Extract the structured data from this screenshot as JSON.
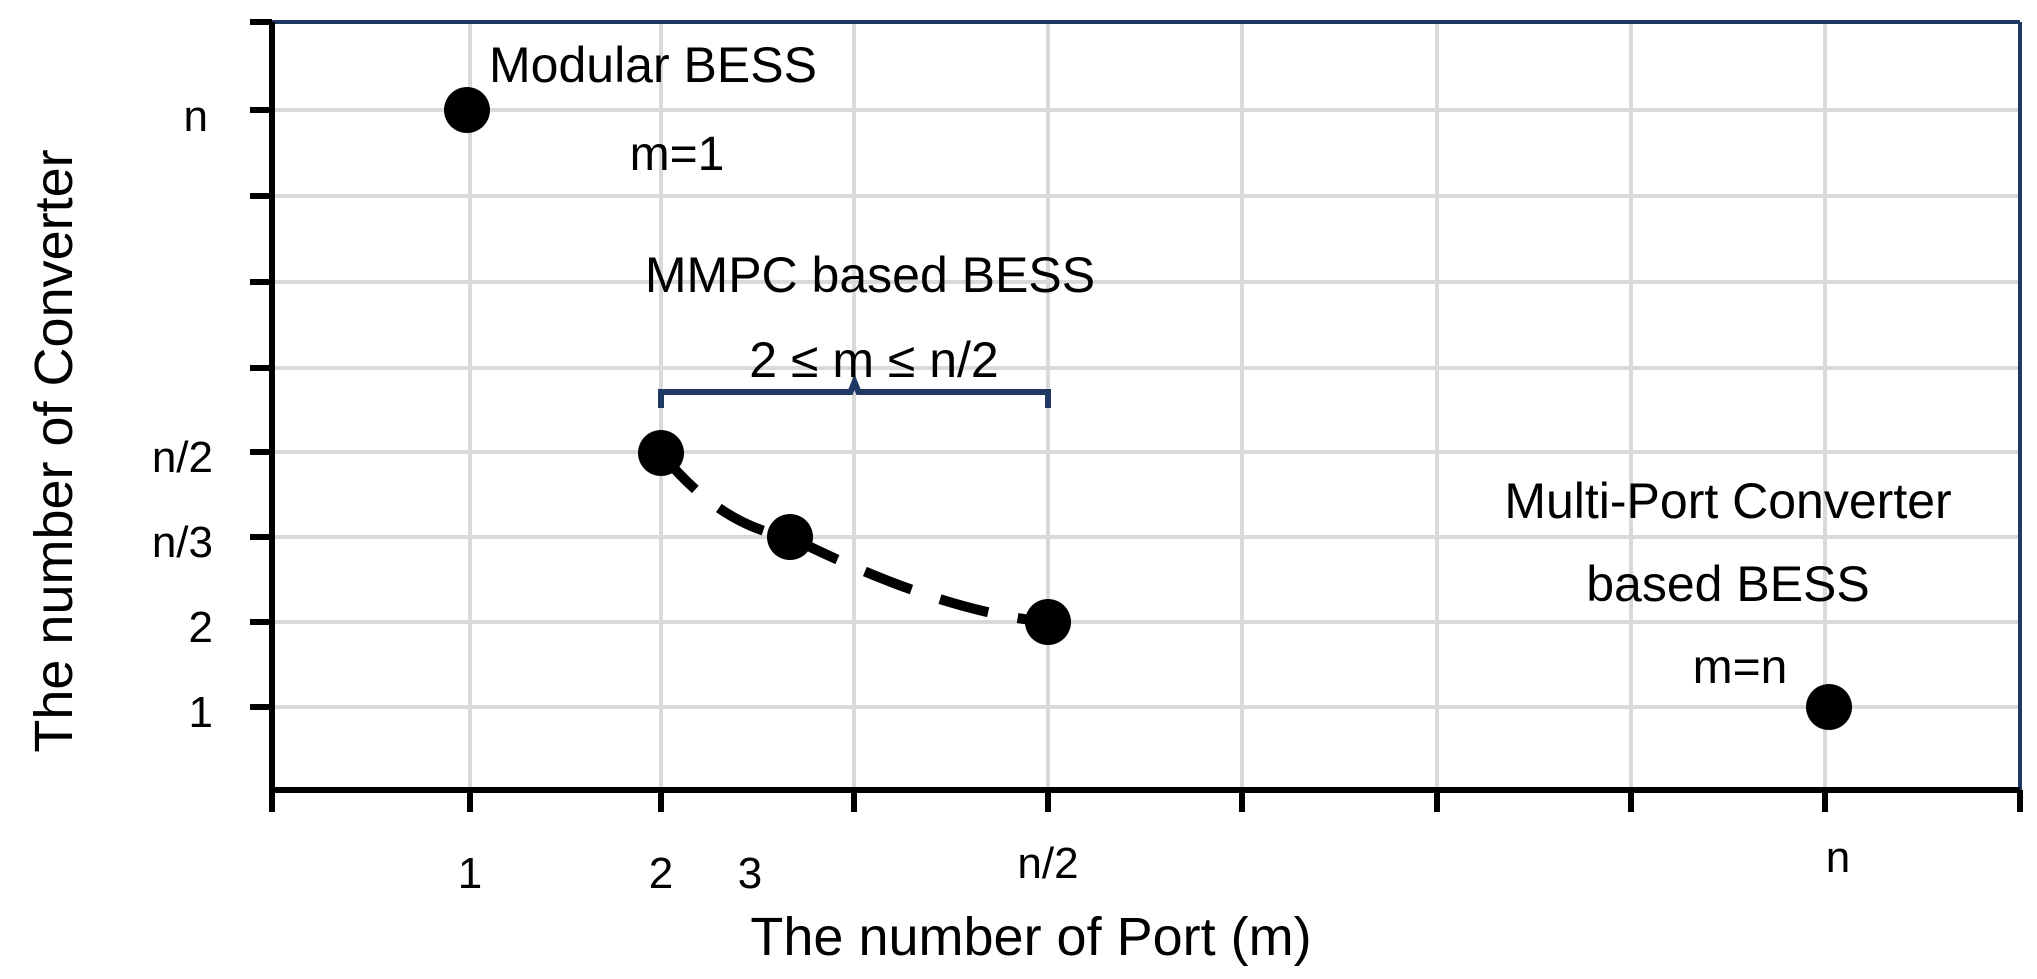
{
  "colors": {
    "axis": "#000000",
    "frame": "#1f3864",
    "grid": "#d9d9d9",
    "points": "#000000",
    "brace": "#1f3864",
    "dash_curve": "#000000"
  },
  "chart_data": {
    "type": "scatter",
    "xlabel": "The number of Port (m)",
    "ylabel": "The number of Converter",
    "x_ticks": [
      "1",
      "2",
      "3",
      "n/2",
      "n"
    ],
    "y_ticks": [
      "1",
      "2",
      "n/3",
      "n/2",
      "n"
    ],
    "grid": true,
    "points": [
      {
        "x": "1",
        "y": "n"
      },
      {
        "x": "2",
        "y": "n/2"
      },
      {
        "x": "3",
        "y": "n/3"
      },
      {
        "x": "n/2",
        "y": "2"
      },
      {
        "x": "n",
        "y": "1"
      }
    ],
    "dashed_trend": {
      "from_x": "2",
      "to_x": "n/2"
    },
    "annotations": {
      "modular": {
        "line1": "Modular BESS",
        "line2": "m=1"
      },
      "mmpc": {
        "line1": "MMPC based BESS",
        "line2": "2 ≤ m ≤ n/2"
      },
      "mpc": {
        "line1": "Multi-Port Converter",
        "line2": "based BESS",
        "line3": "m=n"
      }
    }
  }
}
